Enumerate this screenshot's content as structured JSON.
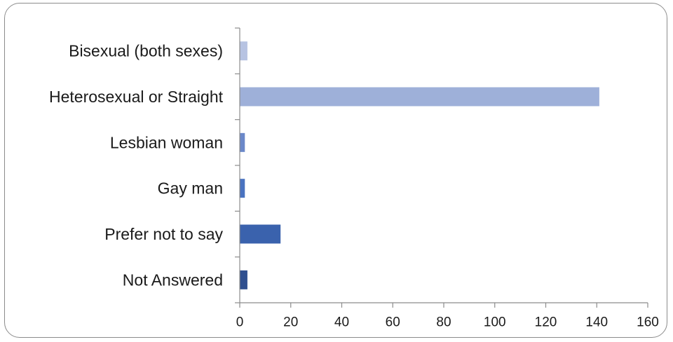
{
  "chart_data": {
    "type": "bar",
    "orientation": "horizontal",
    "title": "",
    "xlabel": "",
    "ylabel": "",
    "categories": [
      "Bisexual (both sexes)",
      "Heterosexual or Straight",
      "Lesbian woman",
      "Gay man",
      "Prefer not to say",
      "Not Answered"
    ],
    "values": [
      3,
      141,
      2,
      2,
      16,
      3
    ],
    "xlim": [
      0,
      160
    ],
    "xticks": [
      "0",
      "20",
      "40",
      "60",
      "80",
      "100",
      "120",
      "140",
      "160"
    ],
    "colors": [
      "#b7c3e2",
      "#9eb0d9",
      "#6b88c9",
      "#4a73c0",
      "#3a62ad",
      "#2f4f8f"
    ],
    "grid": false,
    "legend": "none"
  }
}
